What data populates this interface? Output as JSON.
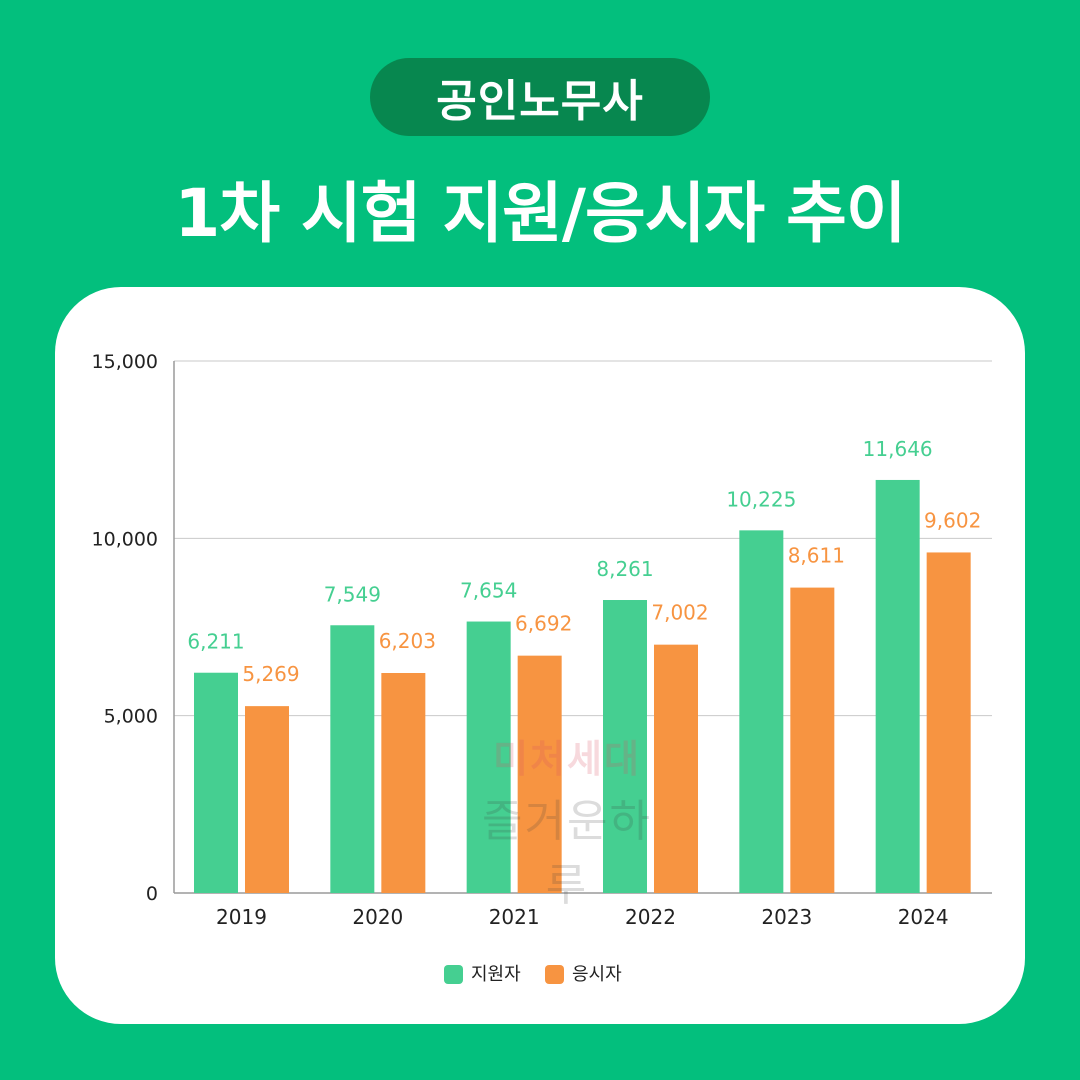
{
  "header": {
    "tag": "공인노무사",
    "title": "1차 시험 지원/응시자 추이"
  },
  "watermark": {
    "line1": "미처세대",
    "line2": "즐거운하루"
  },
  "colors": {
    "background": "#03BF7D",
    "pill": "#07874F",
    "applicants": "#45CF91",
    "examinees": "#F79441"
  },
  "chart_data": {
    "type": "bar",
    "title": "",
    "xlabel": "",
    "ylabel": "",
    "categories": [
      "2019",
      "2020",
      "2021",
      "2022",
      "2023",
      "2024"
    ],
    "ylim": [
      0,
      15000
    ],
    "yticks": [
      0,
      5000,
      10000,
      15000
    ],
    "ytick_labels": [
      "0",
      "5,000",
      "10,000",
      "15,000"
    ],
    "grid": true,
    "legend_position": "bottom",
    "series": [
      {
        "name": "지원자",
        "color": "#45CF91",
        "values": [
          6211,
          7549,
          7654,
          8261,
          10225,
          11646
        ],
        "labels": [
          "6,211",
          "7,549",
          "7,654",
          "8,261",
          "10,225",
          "11,646"
        ]
      },
      {
        "name": "응시자",
        "color": "#F79441",
        "values": [
          5269,
          6203,
          6692,
          7002,
          8611,
          9602
        ],
        "labels": [
          "5,269",
          "6,203",
          "6,692",
          "7,002",
          "8,611",
          "9,602"
        ]
      }
    ]
  }
}
